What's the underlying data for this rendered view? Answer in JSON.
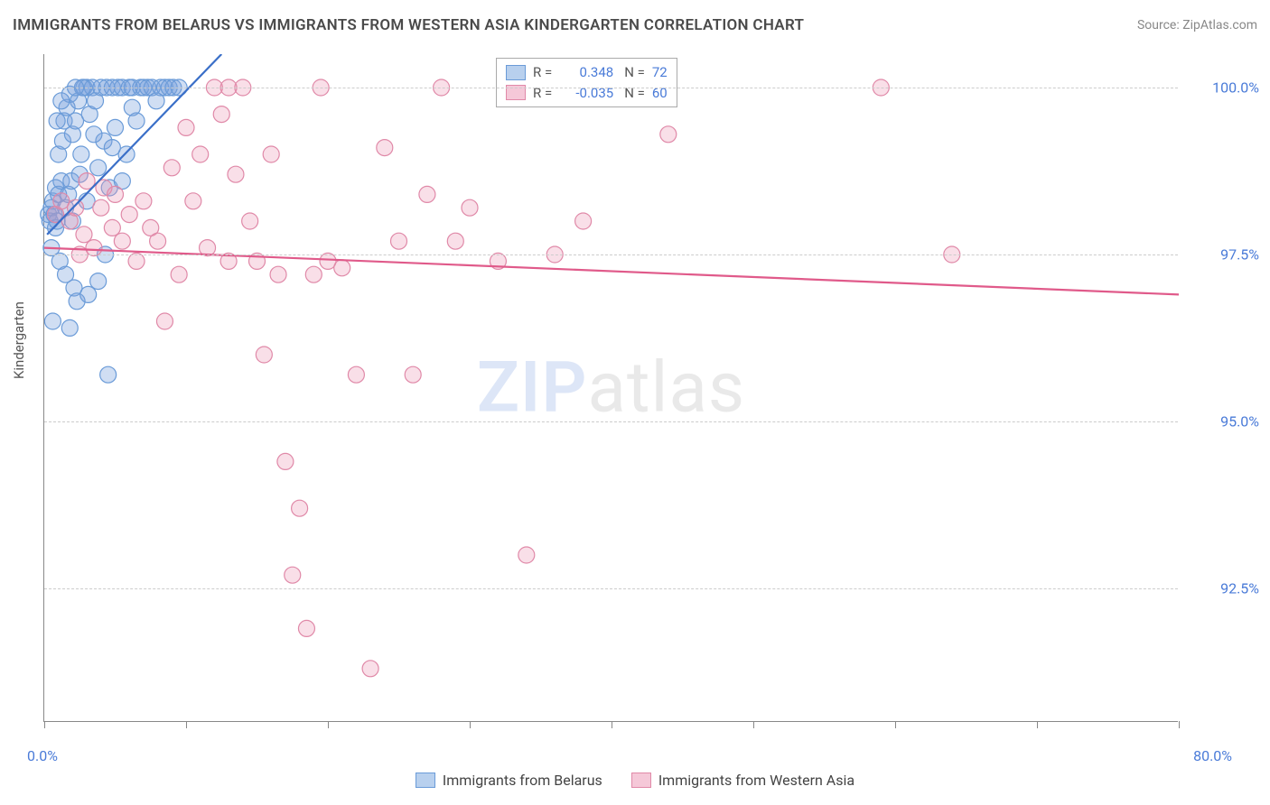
{
  "title": "IMMIGRANTS FROM BELARUS VS IMMIGRANTS FROM WESTERN ASIA KINDERGARTEN CORRELATION CHART",
  "source": "Source: ZipAtlas.com",
  "ylabel": "Kindergarten",
  "watermark_zip": "ZIP",
  "watermark_atlas": "atlas",
  "chart": {
    "type": "scatter",
    "xlim": [
      0,
      80
    ],
    "ylim": [
      90.5,
      100.5
    ],
    "xtick_positions": [
      0,
      10,
      20,
      30,
      40,
      50,
      60,
      70,
      80
    ],
    "ytick_labels": [
      "92.5%",
      "95.0%",
      "97.5%",
      "100.0%"
    ],
    "ytick_values": [
      92.5,
      95.0,
      97.5,
      100.0
    ],
    "xaxis_min_label": "0.0%",
    "xaxis_max_label": "80.0%",
    "grid_color": "#cccccc",
    "background_color": "#ffffff",
    "marker_radius": 9,
    "marker_stroke_width": 1.2,
    "line_width": 2.2
  },
  "series": [
    {
      "name": "Immigrants from Belarus",
      "color_fill": "rgba(120,160,220,0.35)",
      "color_stroke": "#6a9bd8",
      "swatch_fill": "#b8d0ee",
      "swatch_border": "#6a9bd8",
      "line_color": "#3a6fc8",
      "R": "0.348",
      "N": "72",
      "regression": {
        "x1": 0.2,
        "y1": 97.8,
        "x2": 12.5,
        "y2": 100.5
      },
      "points": [
        [
          0.3,
          98.1
        ],
        [
          0.4,
          98.0
        ],
        [
          0.5,
          98.2
        ],
        [
          0.5,
          97.6
        ],
        [
          0.6,
          98.3
        ],
        [
          0.7,
          98.1
        ],
        [
          0.8,
          98.5
        ],
        [
          0.8,
          97.9
        ],
        [
          0.9,
          98.0
        ],
        [
          1.0,
          98.4
        ],
        [
          1.0,
          99.0
        ],
        [
          1.1,
          97.4
        ],
        [
          1.2,
          98.6
        ],
        [
          1.3,
          99.2
        ],
        [
          1.4,
          99.5
        ],
        [
          1.5,
          98.2
        ],
        [
          1.6,
          99.7
        ],
        [
          1.7,
          98.4
        ],
        [
          1.8,
          99.9
        ],
        [
          1.9,
          98.6
        ],
        [
          2.0,
          99.3
        ],
        [
          2.1,
          97.0
        ],
        [
          2.2,
          99.5
        ],
        [
          2.3,
          96.8
        ],
        [
          2.4,
          99.8
        ],
        [
          2.5,
          98.7
        ],
        [
          2.6,
          99.0
        ],
        [
          2.8,
          100.0
        ],
        [
          3.0,
          100.0
        ],
        [
          3.0,
          98.3
        ],
        [
          3.2,
          99.6
        ],
        [
          3.4,
          100.0
        ],
        [
          3.6,
          99.8
        ],
        [
          3.8,
          97.1
        ],
        [
          4.0,
          100.0
        ],
        [
          4.2,
          99.2
        ],
        [
          4.4,
          100.0
        ],
        [
          4.6,
          98.5
        ],
        [
          4.8,
          100.0
        ],
        [
          5.0,
          99.4
        ],
        [
          5.2,
          100.0
        ],
        [
          5.5,
          100.0
        ],
        [
          5.8,
          99.0
        ],
        [
          6.0,
          100.0
        ],
        [
          6.2,
          100.0
        ],
        [
          6.5,
          99.5
        ],
        [
          6.8,
          100.0
        ],
        [
          7.0,
          100.0
        ],
        [
          7.3,
          100.0
        ],
        [
          7.6,
          100.0
        ],
        [
          7.9,
          99.8
        ],
        [
          8.2,
          100.0
        ],
        [
          8.5,
          100.0
        ],
        [
          8.8,
          100.0
        ],
        [
          9.1,
          100.0
        ],
        [
          9.5,
          100.0
        ],
        [
          4.5,
          95.7
        ],
        [
          1.8,
          96.4
        ],
        [
          3.1,
          96.9
        ],
        [
          0.6,
          96.5
        ],
        [
          1.2,
          99.8
        ],
        [
          2.0,
          98.0
        ],
        [
          2.7,
          100.0
        ],
        [
          3.5,
          99.3
        ],
        [
          4.8,
          99.1
        ],
        [
          5.5,
          98.6
        ],
        [
          6.2,
          99.7
        ],
        [
          0.9,
          99.5
        ],
        [
          1.5,
          97.2
        ],
        [
          2.2,
          100.0
        ],
        [
          3.8,
          98.8
        ],
        [
          4.3,
          97.5
        ]
      ]
    },
    {
      "name": "Immigrants from Western Asia",
      "color_fill": "rgba(235,150,180,0.30)",
      "color_stroke": "#e089a8",
      "swatch_fill": "#f5c8d8",
      "swatch_border": "#e089a8",
      "line_color": "#e05a8a",
      "R": "-0.035",
      "N": "60",
      "regression": {
        "x1": 0,
        "y1": 97.6,
        "x2": 80,
        "y2": 96.9
      },
      "points": [
        [
          0.8,
          98.1
        ],
        [
          1.2,
          98.3
        ],
        [
          1.8,
          98.0
        ],
        [
          2.2,
          98.2
        ],
        [
          2.5,
          97.5
        ],
        [
          2.8,
          97.8
        ],
        [
          3.0,
          98.6
        ],
        [
          3.5,
          97.6
        ],
        [
          4.0,
          98.2
        ],
        [
          4.2,
          98.5
        ],
        [
          4.8,
          97.9
        ],
        [
          5.0,
          98.4
        ],
        [
          5.5,
          97.7
        ],
        [
          6.0,
          98.1
        ],
        [
          6.5,
          97.4
        ],
        [
          7.0,
          98.3
        ],
        [
          7.5,
          97.9
        ],
        [
          8.0,
          97.7
        ],
        [
          8.5,
          96.5
        ],
        [
          9.0,
          98.8
        ],
        [
          9.5,
          97.2
        ],
        [
          10.0,
          99.4
        ],
        [
          10.5,
          98.3
        ],
        [
          11.0,
          99.0
        ],
        [
          11.5,
          97.6
        ],
        [
          12.0,
          100.0
        ],
        [
          12.5,
          99.6
        ],
        [
          13.0,
          97.4
        ],
        [
          13.5,
          98.7
        ],
        [
          14.0,
          100.0
        ],
        [
          14.5,
          98.0
        ],
        [
          15.0,
          97.4
        ],
        [
          15.5,
          96.0
        ],
        [
          16.0,
          99.0
        ],
        [
          16.5,
          97.2
        ],
        [
          17.0,
          94.4
        ],
        [
          17.5,
          92.7
        ],
        [
          18.0,
          93.7
        ],
        [
          18.5,
          91.9
        ],
        [
          19.0,
          97.2
        ],
        [
          19.5,
          100.0
        ],
        [
          20.0,
          97.4
        ],
        [
          21.0,
          97.3
        ],
        [
          22.0,
          95.7
        ],
        [
          23.0,
          91.3
        ],
        [
          24.0,
          99.1
        ],
        [
          25.0,
          97.7
        ],
        [
          26.0,
          95.7
        ],
        [
          27.0,
          98.4
        ],
        [
          28.0,
          100.0
        ],
        [
          29.0,
          97.7
        ],
        [
          30.0,
          98.2
        ],
        [
          32.0,
          97.4
        ],
        [
          34.0,
          93.0
        ],
        [
          36.0,
          97.5
        ],
        [
          38.0,
          98.0
        ],
        [
          44.0,
          99.3
        ],
        [
          59.0,
          100.0
        ],
        [
          64.0,
          97.5
        ],
        [
          13.0,
          100.0
        ]
      ]
    }
  ],
  "bottom_legend": {
    "series1_label": "Immigrants from Belarus",
    "series2_label": "Immigrants from Western Asia"
  },
  "stats_legend": {
    "R_label": "R =",
    "N_label": "N ="
  }
}
